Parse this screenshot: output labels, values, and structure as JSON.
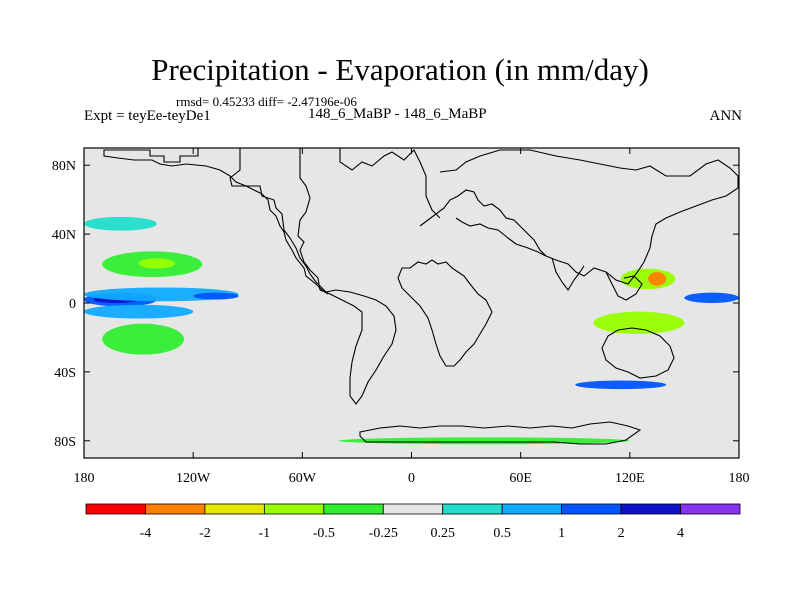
{
  "header": {
    "title": "Precipitation - Evaporation (in mm/day)",
    "stats": "rmsd= 0.45233 diff= -2.47196e-06",
    "experiment": "Expt = teyEe-teyDe1",
    "runs": "148_6_MaBP - 148_6_MaBP",
    "season": "ANN"
  },
  "chart_data": {
    "type": "heatmap",
    "title": "Precipitation - Evaporation (in mm/day)",
    "subtitle": "148_6_MaBP - 148_6_MaBP",
    "xlabel": "",
    "ylabel": "",
    "xlim": [
      -180,
      180
    ],
    "ylim": [
      -90,
      90
    ],
    "x_ticks": [
      {
        "value": -180,
        "label": "180"
      },
      {
        "value": -120,
        "label": "120W"
      },
      {
        "value": -60,
        "label": "60W"
      },
      {
        "value": 0,
        "label": "0"
      },
      {
        "value": 60,
        "label": "60E"
      },
      {
        "value": 120,
        "label": "120E"
      },
      {
        "value": 180,
        "label": "180"
      }
    ],
    "y_ticks": [
      {
        "value": 80,
        "label": "80N"
      },
      {
        "value": 40,
        "label": "40N"
      },
      {
        "value": 0,
        "label": "0"
      },
      {
        "value": -40,
        "label": "40S"
      },
      {
        "value": -80,
        "label": "80S"
      }
    ],
    "colorbar": {
      "levels": [
        "-4",
        "-2",
        "-1",
        "-0.5",
        "-0.25",
        "0.25",
        "0.5",
        "1",
        "2",
        "4"
      ],
      "colors": [
        "#ff0000",
        "#ff8000",
        "#e6e600",
        "#99ff00",
        "#33ee33",
        "#e6e6e6",
        "#22ddcc",
        "#11aaff",
        "#0055ff",
        "#1111cc",
        "#8833ee"
      ]
    },
    "neutral_color": "#e6e6e6",
    "features": [
      {
        "name": "equatorial-pacific-east-blue-band",
        "bin": 8,
        "lon": [
          -180,
          -140
        ],
        "lat": [
          -2,
          6
        ]
      },
      {
        "name": "equatorial-pacific-east-core",
        "bin": 9,
        "lon": [
          -175,
          -150
        ],
        "lat": [
          0,
          4
        ]
      },
      {
        "name": "equatorial-pacific-mid-blue-band",
        "bin": 7,
        "lon": [
          -180,
          -95
        ],
        "lat": [
          1,
          9
        ]
      },
      {
        "name": "equatorial-pacific-south-band",
        "bin": 7,
        "lon": [
          -180,
          -120
        ],
        "lat": [
          -9,
          -1
        ]
      },
      {
        "name": "pacific-itcz-dark",
        "bin": 8,
        "lon": [
          -120,
          -95
        ],
        "lat": [
          2,
          6
        ]
      },
      {
        "name": "north-pacific-subtropic-dry",
        "bin": 4,
        "lon": [
          -170,
          -115
        ],
        "lat": [
          15,
          30
        ]
      },
      {
        "name": "north-pacific-subtropic-core",
        "bin": 3,
        "lon": [
          -150,
          -130
        ],
        "lat": [
          20,
          26
        ]
      },
      {
        "name": "south-pacific-subtropic-dry",
        "bin": 4,
        "lon": [
          -170,
          -125
        ],
        "lat": [
          -30,
          -12
        ]
      },
      {
        "name": "north-pacific-midlat-wet",
        "bin": 6,
        "lon": [
          -180,
          -140
        ],
        "lat": [
          42,
          50
        ]
      },
      {
        "name": "southern-ocean-wet",
        "bin": 8,
        "lon": [
          90,
          140
        ],
        "lat": [
          -50,
          -45
        ]
      },
      {
        "name": "indonesia-dry",
        "bin": 3,
        "lon": [
          115,
          145
        ],
        "lat": [
          8,
          20
        ]
      },
      {
        "name": "indonesia-dry-core",
        "bin": 1,
        "lon": [
          130,
          140
        ],
        "lat": [
          10,
          18
        ]
      },
      {
        "name": "west-pacific-wet",
        "bin": 8,
        "lon": [
          150,
          180
        ],
        "lat": [
          0,
          6
        ]
      },
      {
        "name": "south-indian-dry",
        "bin": 3,
        "lon": [
          100,
          150
        ],
        "lat": [
          -18,
          -5
        ]
      },
      {
        "name": "antarctic-coast-dry",
        "bin": 4,
        "lon": [
          -40,
          120
        ],
        "lat": [
          -82,
          -78
        ]
      }
    ]
  }
}
